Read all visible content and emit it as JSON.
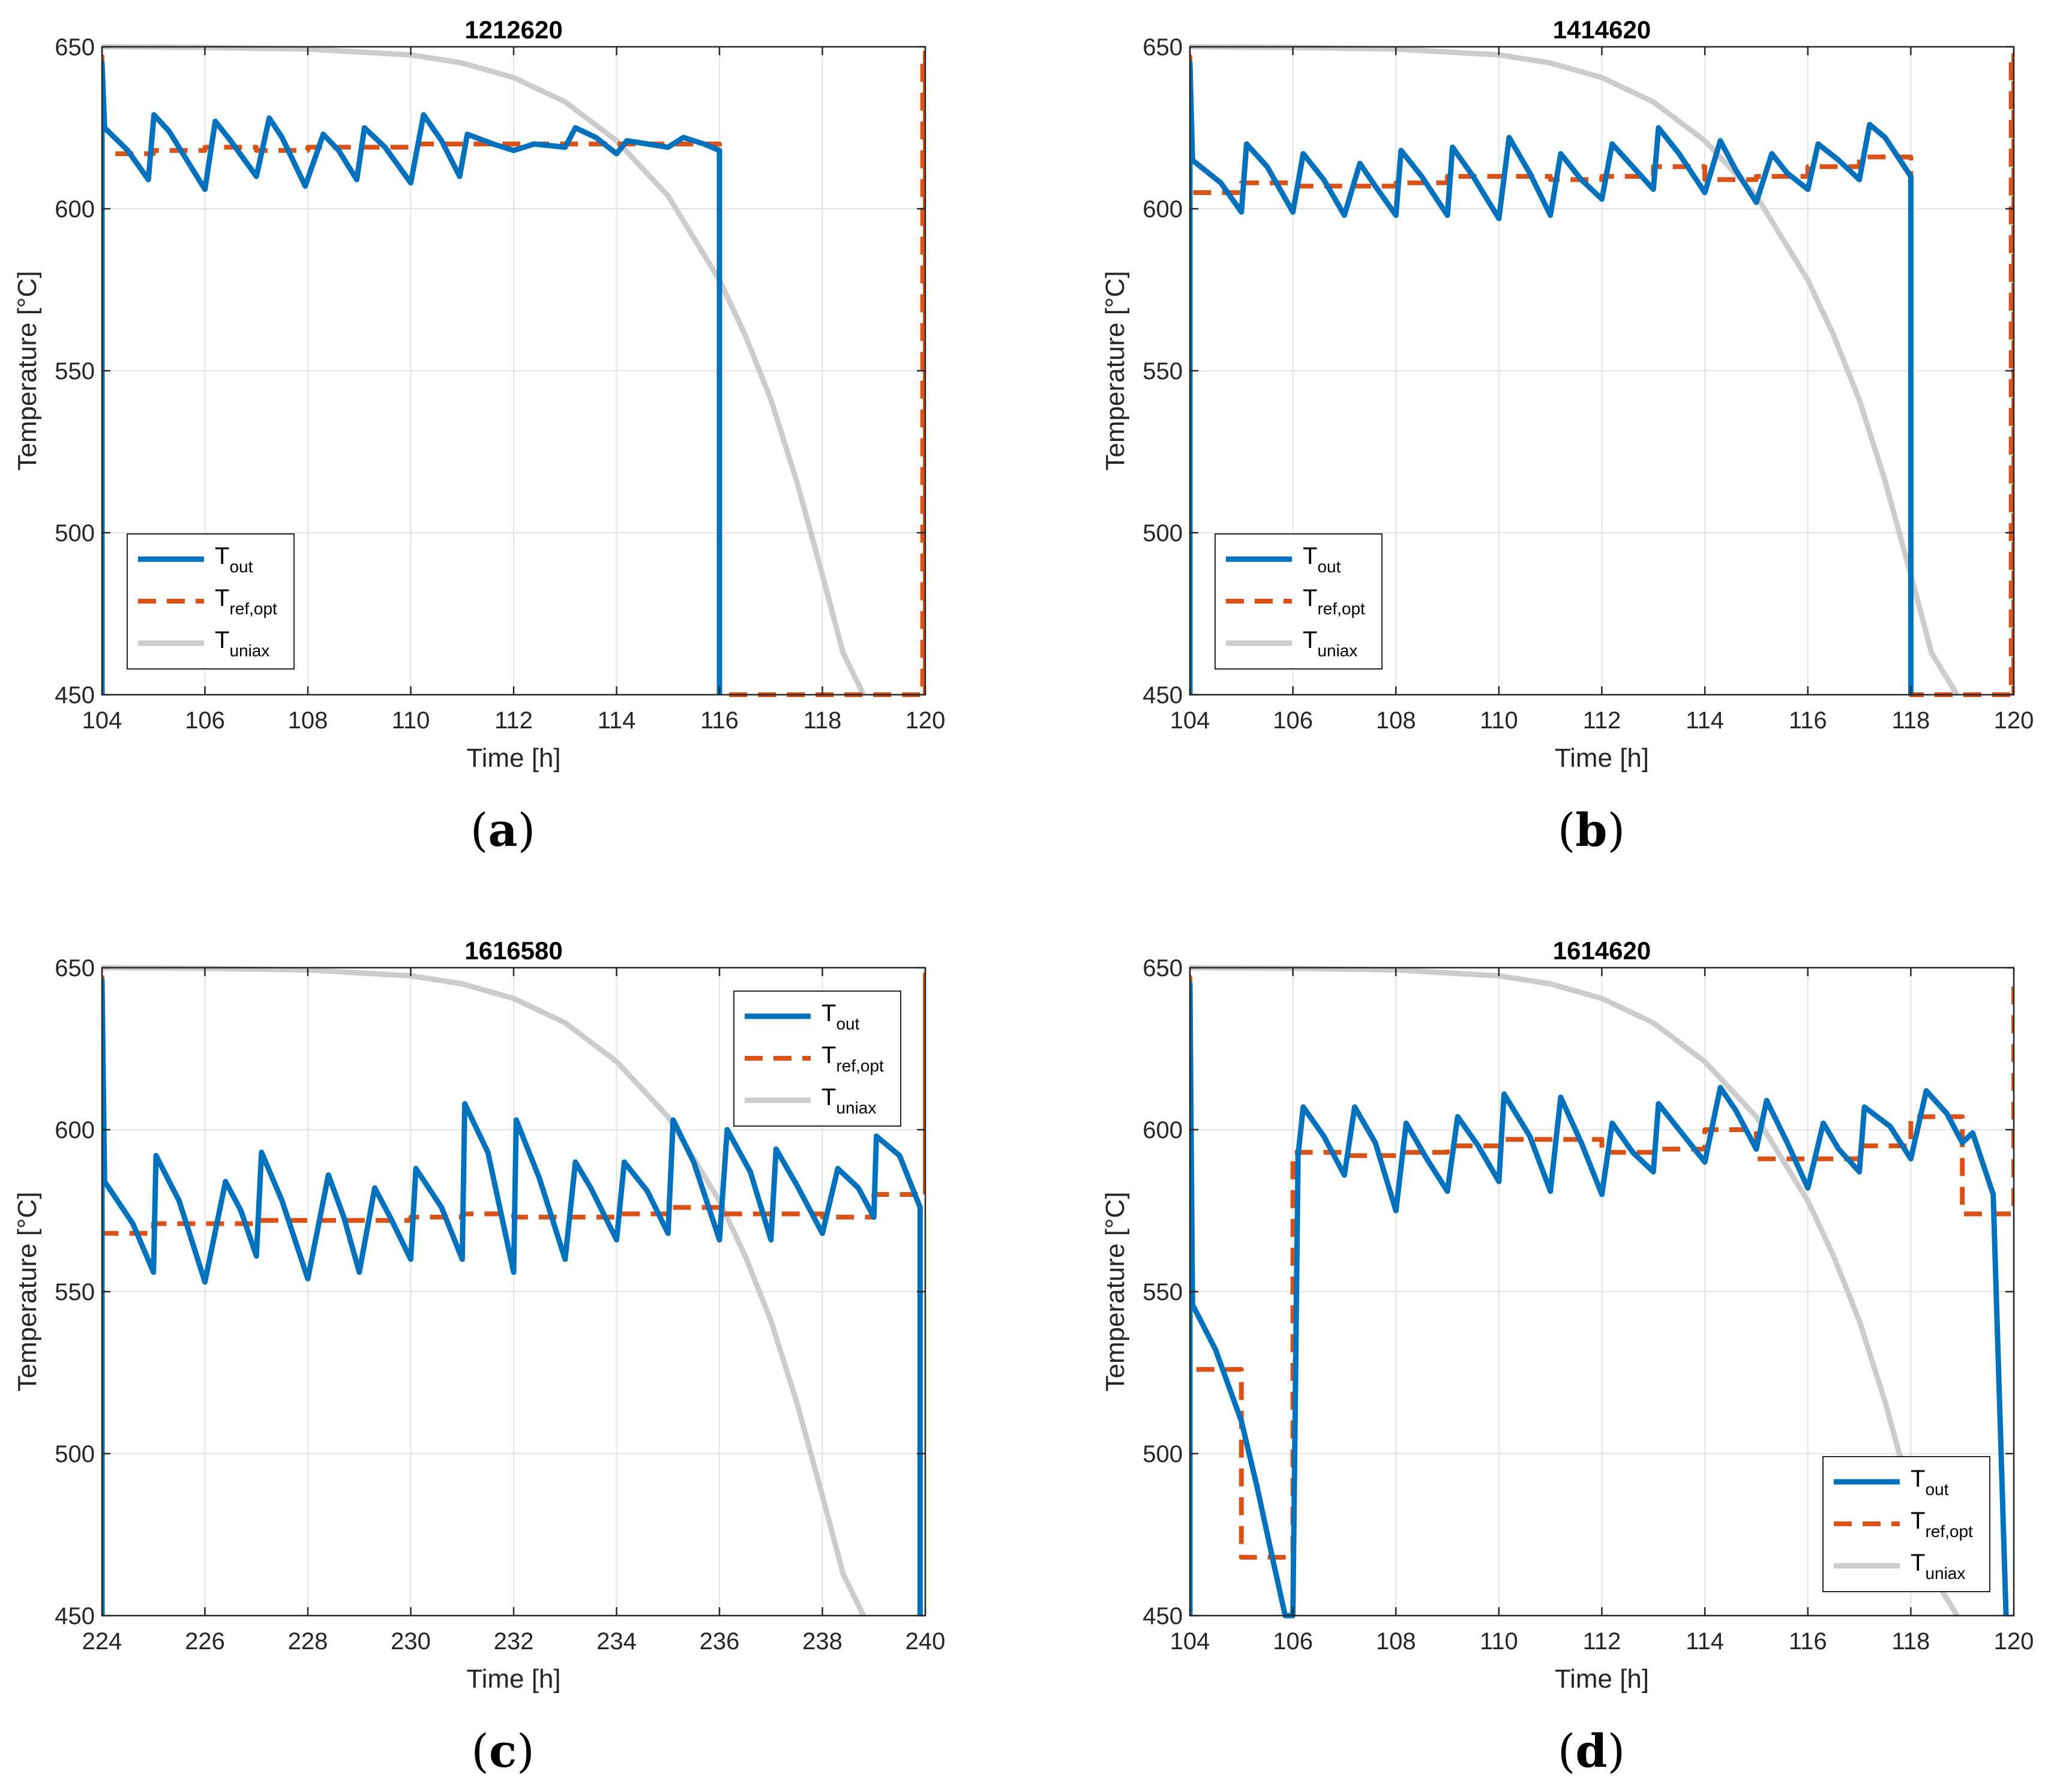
{
  "legend_labels": [
    {
      "main": "T",
      "sub": "out"
    },
    {
      "main": "T",
      "sub": "ref,opt"
    },
    {
      "main": "T",
      "sub": "uniax"
    }
  ],
  "colors": {
    "tout": "#0072BD",
    "tref": "#D95319",
    "tuniax": "#CCCCCC",
    "grid": "#E3E3E3",
    "axis": "#262626"
  },
  "chart_data": [
    {
      "type": "line",
      "panel": "a",
      "caption": "(a)",
      "title": "1212620",
      "xlabel": "Time [h]",
      "ylabel": "Temperature [°C]",
      "xlim": [
        104,
        120
      ],
      "ylim": [
        450,
        650
      ],
      "xticks": [
        104,
        106,
        108,
        110,
        112,
        114,
        116,
        118,
        120
      ],
      "yticks": [
        450,
        500,
        550,
        600,
        650
      ],
      "legend_position": "bottom-left",
      "series": [
        {
          "name": "T_out",
          "x": [
            104,
            104,
            104.05,
            104.5,
            104.9,
            105.01,
            105.3,
            106.0,
            106.2,
            106.5,
            107.0,
            107.25,
            107.5,
            107.95,
            108.3,
            108.6,
            108.95,
            109.1,
            109.5,
            110.0,
            110.25,
            110.6,
            110.95,
            111.1,
            111.6,
            112.0,
            112.4,
            113.0,
            113.2,
            113.6,
            114.0,
            114.2,
            114.6,
            115.0,
            115.3,
            115.7,
            116.0,
            116.0
          ],
          "y": [
            450,
            645,
            625,
            618,
            609,
            629,
            624,
            606,
            627,
            621,
            610,
            628,
            622,
            607,
            623,
            618,
            609,
            625,
            619,
            608,
            629,
            621,
            610,
            623,
            620,
            618,
            620,
            619,
            625,
            622,
            617,
            621,
            620,
            619,
            622,
            620,
            618,
            450
          ]
        },
        {
          "name": "T_ref,opt",
          "x": [
            104,
            104,
            104,
            105,
            105,
            106,
            106,
            107,
            107,
            108,
            108,
            109,
            109,
            110,
            110,
            111,
            111,
            112,
            112,
            113,
            113,
            114,
            114,
            115,
            115,
            116,
            116,
            116,
            119.95,
            119.95,
            120,
            120
          ],
          "y": [
            450,
            647,
            617,
            617,
            618,
            618,
            619,
            619,
            618,
            618,
            619,
            619,
            619,
            619,
            620,
            620,
            620,
            620,
            620,
            620,
            620,
            620,
            620,
            620,
            620,
            620,
            620,
            450,
            450,
            648,
            648,
            450
          ]
        },
        {
          "name": "T_uniax",
          "x": [
            104,
            106,
            108,
            110,
            111,
            112,
            113,
            114,
            115,
            116,
            116.5,
            117,
            117.5,
            118,
            118.4,
            118.8
          ],
          "y": [
            650,
            649.8,
            649.3,
            647.5,
            645,
            640.5,
            633,
            621,
            604,
            578,
            561,
            541,
            516,
            487,
            463,
            450
          ]
        }
      ]
    },
    {
      "type": "line",
      "panel": "b",
      "caption": "(b)",
      "title": "1414620",
      "xlabel": "Time [h]",
      "ylabel": "Temperature [°C]",
      "xlim": [
        104,
        120
      ],
      "ylim": [
        450,
        650
      ],
      "xticks": [
        104,
        106,
        108,
        110,
        112,
        114,
        116,
        118,
        120
      ],
      "yticks": [
        450,
        500,
        550,
        600,
        650
      ],
      "legend_position": "bottom-left",
      "series": [
        {
          "name": "T_out",
          "x": [
            104,
            104,
            104.05,
            104.6,
            105.0,
            105.1,
            105.5,
            106.0,
            106.2,
            106.6,
            107.0,
            107.3,
            107.6,
            108.0,
            108.1,
            108.5,
            109.0,
            109.1,
            109.5,
            110.0,
            110.2,
            110.6,
            111.0,
            111.2,
            111.6,
            112.0,
            112.2,
            112.6,
            113.0,
            113.1,
            113.5,
            114.0,
            114.3,
            114.6,
            115.0,
            115.3,
            115.6,
            116.0,
            116.2,
            116.6,
            117.0,
            117.2,
            117.5,
            118.0,
            118.0
          ],
          "y": [
            450,
            645,
            615,
            608,
            599,
            620,
            613,
            599,
            617,
            609,
            598,
            614,
            607,
            598,
            618,
            610,
            598,
            619,
            610,
            597,
            622,
            611,
            598,
            617,
            609,
            603,
            620,
            613,
            606,
            625,
            617,
            605,
            621,
            612,
            602,
            617,
            611,
            606,
            620,
            615,
            609,
            626,
            622,
            610,
            450
          ]
        },
        {
          "name": "T_ref,opt",
          "x": [
            104,
            104,
            104,
            105,
            105,
            106,
            106,
            107,
            107,
            108,
            108,
            109,
            109,
            110,
            110,
            111,
            111,
            112,
            112,
            113,
            113,
            114,
            114,
            115,
            115,
            116,
            116,
            117,
            117,
            118,
            118,
            118,
            119.95,
            119.95,
            120,
            120
          ],
          "y": [
            450,
            647,
            605,
            605,
            608,
            608,
            607,
            607,
            607,
            607,
            608,
            608,
            610,
            610,
            610,
            610,
            609,
            609,
            610,
            610,
            613,
            613,
            609,
            609,
            610,
            610,
            613,
            613,
            616,
            616,
            610,
            450,
            450,
            648,
            648,
            450
          ]
        },
        {
          "name": "T_uniax",
          "x": [
            104,
            106,
            108,
            110,
            111,
            112,
            113,
            114,
            115,
            116,
            116.5,
            117,
            117.5,
            118,
            118.4,
            118.9
          ],
          "y": [
            650,
            649.8,
            649.3,
            647.5,
            645,
            640.5,
            633,
            621,
            604,
            578,
            561,
            541,
            516,
            487,
            463,
            450
          ]
        }
      ]
    },
    {
      "type": "line",
      "panel": "c",
      "caption": "(c)",
      "title": "1616580",
      "xlabel": "Time [h]",
      "ylabel": "Temperature [°C]",
      "xlim": [
        224,
        240
      ],
      "ylim": [
        450,
        650
      ],
      "xticks": [
        224,
        226,
        228,
        230,
        232,
        234,
        236,
        238,
        240
      ],
      "yticks": [
        450,
        500,
        550,
        600,
        650
      ],
      "legend_position": "top-right",
      "series": [
        {
          "name": "T_out",
          "x": [
            224,
            224,
            224.05,
            224.6,
            225.0,
            225.05,
            225.5,
            226.0,
            226.4,
            226.7,
            227.0,
            227.1,
            227.5,
            228.0,
            228.4,
            228.7,
            229.0,
            229.3,
            229.6,
            230.0,
            230.1,
            230.6,
            231.0,
            231.05,
            231.5,
            232.0,
            232.05,
            232.5,
            233.0,
            233.2,
            233.5,
            234.0,
            234.15,
            234.6,
            235.0,
            235.1,
            235.5,
            236.0,
            236.15,
            236.6,
            237.0,
            237.1,
            237.5,
            238.0,
            238.3,
            238.7,
            239.0,
            239.05,
            239.5,
            239.9,
            239.9
          ],
          "y": [
            450,
            646,
            584,
            571,
            556,
            592,
            578,
            553,
            584,
            575,
            561,
            593,
            578,
            554,
            586,
            573,
            556,
            582,
            573,
            560,
            588,
            576,
            560,
            608,
            593,
            556,
            603,
            585,
            560,
            590,
            582,
            566,
            590,
            581,
            568,
            603,
            590,
            566,
            600,
            587,
            566,
            594,
            583,
            568,
            588,
            582,
            573,
            598,
            592,
            576,
            450
          ]
        },
        {
          "name": "T_ref,opt",
          "x": [
            224,
            224,
            224,
            225,
            225,
            226,
            226,
            227,
            227,
            228,
            228,
            229,
            229,
            230,
            230,
            231,
            231,
            232,
            232,
            233,
            233,
            234,
            234,
            235,
            235,
            236,
            236,
            237,
            237,
            238,
            238,
            239,
            239,
            240,
            240,
            240
          ],
          "y": [
            450,
            647,
            568,
            568,
            571,
            571,
            571,
            571,
            572,
            572,
            572,
            572,
            572,
            572,
            573,
            573,
            574,
            574,
            573,
            573,
            573,
            573,
            574,
            574,
            576,
            576,
            574,
            574,
            574,
            574,
            573,
            573,
            580,
            580,
            648,
            580
          ]
        },
        {
          "name": "T_uniax",
          "x": [
            224,
            226,
            228,
            230,
            231,
            232,
            233,
            234,
            235,
            236,
            236.5,
            237,
            237.5,
            238,
            238.4,
            238.8
          ],
          "y": [
            650,
            649.8,
            649.3,
            647.5,
            645,
            640.5,
            633,
            621,
            604,
            578,
            561,
            541,
            516,
            487,
            463,
            450
          ]
        }
      ]
    },
    {
      "type": "line",
      "panel": "d",
      "caption": "(d)",
      "title": "1614620",
      "xlabel": "Time [h]",
      "ylabel": "Temperature [°C]",
      "xlim": [
        104,
        120
      ],
      "ylim": [
        450,
        650
      ],
      "xticks": [
        104,
        106,
        108,
        110,
        112,
        114,
        116,
        118,
        120
      ],
      "yticks": [
        450,
        500,
        550,
        600,
        650
      ],
      "legend_position": "bottom-right",
      "series": [
        {
          "name": "T_out",
          "x": [
            104,
            104,
            104.05,
            104.5,
            105.0,
            105.3,
            105.6,
            105.85,
            106.0,
            106.1,
            106.2,
            106.6,
            107.0,
            107.2,
            107.6,
            108.0,
            108.2,
            108.6,
            109.0,
            109.2,
            109.6,
            110.0,
            110.1,
            110.6,
            111.0,
            111.2,
            111.6,
            112.0,
            112.2,
            112.6,
            113.0,
            113.1,
            113.6,
            114.0,
            114.3,
            114.6,
            115.0,
            115.2,
            115.6,
            116.0,
            116.3,
            116.6,
            117.0,
            117.1,
            117.6,
            118.0,
            118.3,
            118.7,
            119.0,
            119.2,
            119.6,
            119.85,
            119.85
          ],
          "y": [
            450,
            645,
            546,
            532,
            510,
            490,
            468,
            450,
            450,
            592,
            607,
            598,
            586,
            607,
            596,
            575,
            602,
            591,
            581,
            604,
            595,
            584,
            611,
            598,
            581,
            610,
            596,
            580,
            602,
            593,
            587,
            608,
            598,
            590,
            613,
            606,
            594,
            609,
            596,
            582,
            602,
            594,
            587,
            607,
            601,
            591,
            612,
            605,
            596,
            599,
            580,
            450,
            450
          ]
        },
        {
          "name": "T_ref,opt",
          "x": [
            104,
            104,
            104,
            105,
            105,
            106,
            106,
            107,
            107,
            108,
            108,
            109,
            109,
            110,
            110,
            111,
            111,
            112,
            112,
            113,
            113,
            114,
            114,
            115,
            115,
            116,
            116,
            117,
            117,
            118,
            118,
            119,
            119,
            120,
            120
          ],
          "y": [
            450,
            647,
            526,
            526,
            468,
            468,
            593,
            593,
            592,
            592,
            593,
            593,
            595,
            595,
            597,
            597,
            597,
            597,
            593,
            593,
            594,
            594,
            600,
            600,
            591,
            591,
            591,
            591,
            595,
            595,
            604,
            604,
            574,
            574,
            647
          ]
        },
        {
          "name": "T_uniax",
          "x": [
            104,
            106,
            108,
            110,
            111,
            112,
            113,
            114,
            115,
            116,
            116.5,
            117,
            117.5,
            118,
            118.4,
            118.9
          ],
          "y": [
            650,
            649.8,
            649.3,
            647.5,
            645,
            640.5,
            633,
            621,
            604,
            578,
            561,
            541,
            516,
            487,
            463,
            450
          ]
        }
      ]
    }
  ]
}
